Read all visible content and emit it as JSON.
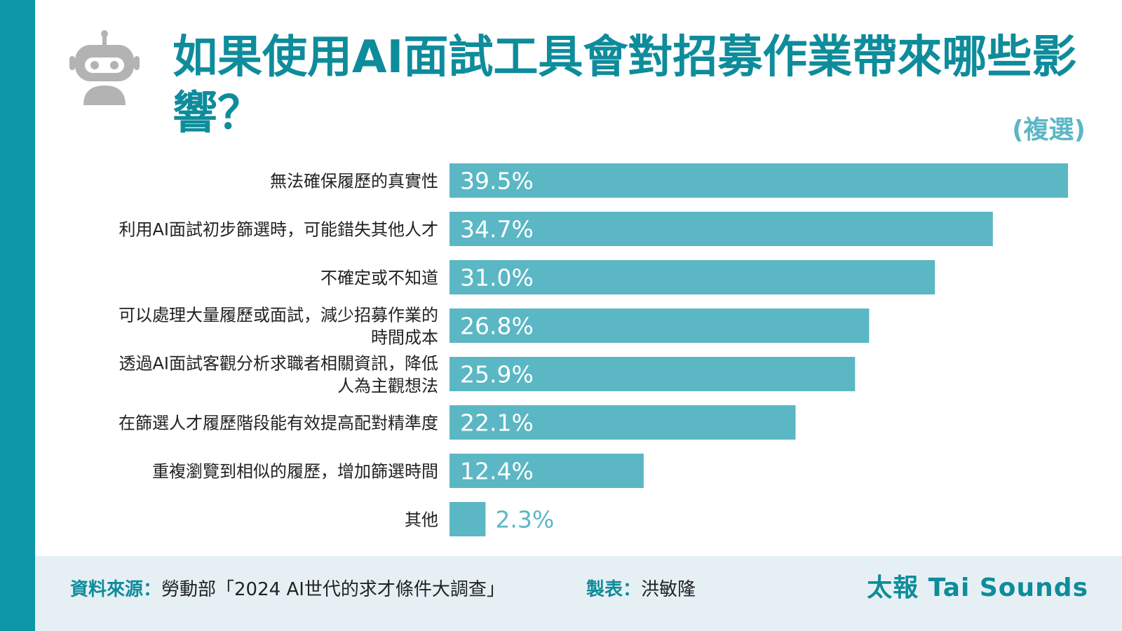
{
  "header": {
    "title": "如果使用AI面試工具會對招募作業帶來哪些影響？",
    "note": "(複選)"
  },
  "colors": {
    "accent": "#0e97a6",
    "bar": "#5bb7c4",
    "title": "#0e8c9b",
    "footer_bg": "#e6f0f4"
  },
  "icons": {
    "header_icon": "robot-icon"
  },
  "chart_data": {
    "type": "bar",
    "orientation": "horizontal",
    "title": "如果使用AI面試工具會對招募作業帶來哪些影響？",
    "subtitle": "(複選)",
    "categories": [
      [
        "無法確保履歷的真實性"
      ],
      [
        "利用AI面試初步篩選時，可能錯失其他人才"
      ],
      [
        "不確定或不知道"
      ],
      [
        "可以處理大量履歷或面試，減少招募作業的",
        "時間成本"
      ],
      [
        "透過AI面試客觀分析求職者相關資訊，降低",
        "人為主觀想法"
      ],
      [
        "在篩選人才履歷階段能有效提高配對精準度"
      ],
      [
        "重複瀏覽到相似的履歷，增加篩選時間"
      ],
      [
        "其他"
      ]
    ],
    "values": [
      39.5,
      34.7,
      31.0,
      26.8,
      25.9,
      22.1,
      12.4,
      2.3
    ],
    "value_labels": [
      "39.5%",
      "34.7%",
      "31.0%",
      "26.8%",
      "25.9%",
      "22.1%",
      "12.4%",
      "2.3%"
    ],
    "xlim": [
      0,
      40
    ],
    "grid": false,
    "legend": "none"
  },
  "footer": {
    "source_label": "資料來源：",
    "source_text": "勞動部「2024 AI世代的求才條件大調查」",
    "maker_label": "製表：",
    "maker_text": "洪敏隆",
    "brand": "太報 Tai Sounds"
  }
}
